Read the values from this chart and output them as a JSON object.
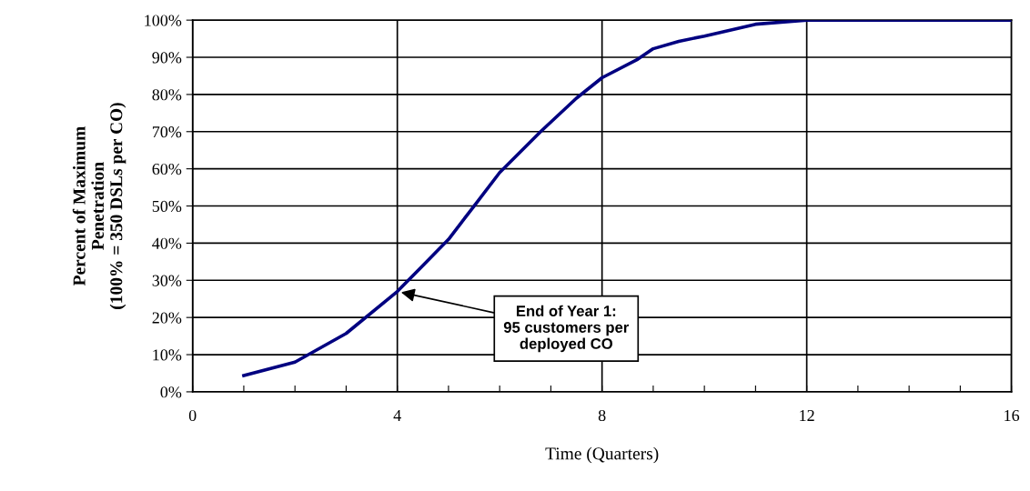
{
  "chart_data": {
    "type": "line",
    "xlabel": "Time (Quarters)",
    "ylabel": "Percent of Maximum\nPenetration\n(100% = 350 DSLs per CO)",
    "x": [
      1,
      2,
      3,
      4,
      4.5,
      5,
      5.5,
      6,
      6.8,
      7.5,
      8,
      8.7,
      9,
      9.5,
      10,
      11,
      12,
      13,
      14,
      15,
      16
    ],
    "series": [
      {
        "color": "#000080",
        "values": [
          4.4,
          8,
          15.7,
          27,
          34,
          41,
          50,
          59,
          70,
          79,
          84.5,
          89.5,
          92.3,
          94.3,
          95.7,
          98.9,
          100,
          100,
          100,
          100,
          100
        ]
      }
    ],
    "xlim": [
      0,
      16
    ],
    "xticks": [
      0,
      {
        "value": 1,
        "label": null
      },
      {
        "value": 2,
        "label": null
      },
      {
        "value": 3,
        "label": null
      },
      4,
      {
        "value": 5,
        "label": null
      },
      {
        "value": 6,
        "label": null
      },
      {
        "value": 7,
        "label": null
      },
      8,
      {
        "value": 9,
        "label": null
      },
      {
        "value": 10,
        "label": null
      },
      {
        "value": 11,
        "label": null
      },
      12,
      {
        "value": 13,
        "label": null
      },
      {
        "value": 14,
        "label": null
      },
      {
        "value": 15,
        "label": null
      },
      16
    ],
    "ylim": [
      0,
      100
    ],
    "yticks": [
      {
        "value": 0,
        "label": "0%"
      },
      {
        "value": 10,
        "label": "10%"
      },
      {
        "value": 20,
        "label": "20%"
      },
      {
        "value": 30,
        "label": "30%"
      },
      {
        "value": 40,
        "label": "40%"
      },
      {
        "value": 50,
        "label": "50%"
      },
      {
        "value": 60,
        "label": "60%"
      },
      {
        "value": 70,
        "label": "70%"
      },
      {
        "value": 80,
        "label": "80%"
      },
      {
        "value": 90,
        "label": "90%"
      },
      {
        "value": 100,
        "label": "100%"
      }
    ],
    "grid": true,
    "marker": "none",
    "line_style": "solid",
    "annotations": [
      {
        "text": "End of Year 1:\n95 customers per\ndeployed CO",
        "x": 4,
        "y": 27
      }
    ]
  }
}
